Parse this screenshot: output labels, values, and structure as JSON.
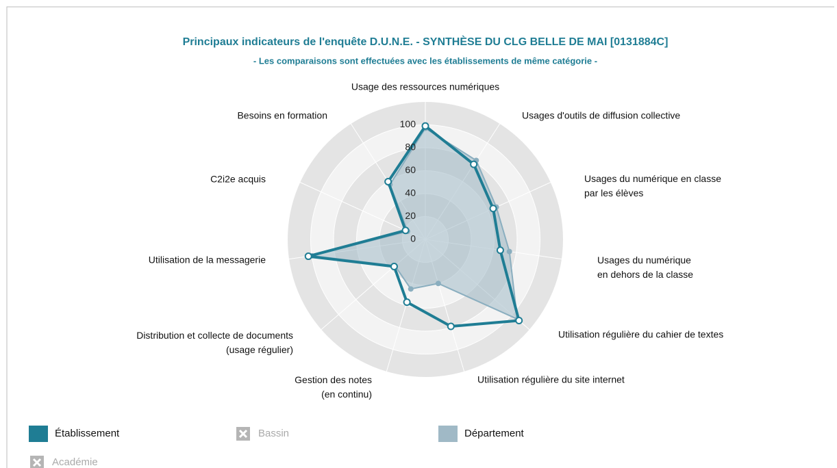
{
  "chart_data": {
    "type": "radar",
    "title": "Principaux indicateurs de l'enquête D.U.N.E. - SYNTHÈSE DU CLG BELLE DE MAI [0131884C]",
    "subtitle": "- Les comparaisons sont effectuées avec les établissements de même catégorie -",
    "categories": [
      "Usage des ressources numériques",
      "Usages d'outils de diffusion collective",
      "Usages du numérique en classe\npar les élèves",
      "Usages du numérique\nen dehors de la classe",
      "Utilisation régulière du cahier de textes",
      "Utilisation régulière du site internet",
      "Gestion des notes\n(en continu)",
      "Distribution et collecte de documents\n(usage régulier)",
      "Utilisation de la messagerie",
      "C2i2e acquis",
      "Besoins en formation"
    ],
    "series": [
      {
        "name": "Établissement",
        "color": "#1f7d94",
        "visible": true,
        "values": [
          99,
          78,
          65,
          66,
          108,
          79,
          57,
          36,
          103,
          19,
          60
        ]
      },
      {
        "name": "Bassin",
        "color": "#aaaaaa",
        "visible": false,
        "values": [
          null,
          null,
          null,
          null,
          null,
          null,
          null,
          null,
          null,
          null,
          null
        ]
      },
      {
        "name": "Département",
        "color": "#a0b9c6",
        "visible": true,
        "values": [
          97,
          82,
          68,
          74,
          106,
          40,
          45,
          35,
          100,
          17,
          57
        ]
      },
      {
        "name": "Académie",
        "color": "#aaaaaa",
        "visible": false,
        "values": [
          null,
          null,
          null,
          null,
          null,
          null,
          null,
          null,
          null,
          null,
          null
        ]
      }
    ],
    "ylim": [
      0,
      120
    ],
    "yticks": [
      0,
      20,
      40,
      60,
      80,
      100
    ]
  }
}
